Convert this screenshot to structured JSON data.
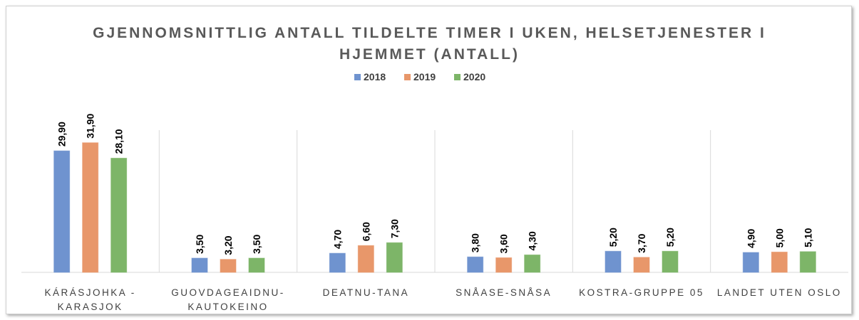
{
  "chart_data": {
    "type": "bar",
    "title": "GJENNOMSNITTLIG ANTALL TILDELTE TIMER I UKEN, HELSETJENESTER I HJEMMET (ANTALL)",
    "categories": [
      "KÁRÁSJOHKA - KARASJOK",
      "GUOVDAGEAIDNU-KAUTOKEINO",
      "DEATNU-TANA",
      "SNÅASE-SNÅSA",
      "KOSTRA-GRUPPE 05",
      "LANDET UTEN OSLO"
    ],
    "series": [
      {
        "name": "2018",
        "color": "#6f93cf",
        "values": [
          29.9,
          3.5,
          4.7,
          3.8,
          5.2,
          4.9
        ],
        "value_labels": [
          "29,90",
          "3,50",
          "4,70",
          "3,80",
          "5,20",
          "4,90"
        ]
      },
      {
        "name": "2019",
        "color": "#e8976a",
        "values": [
          31.9,
          3.2,
          6.6,
          3.6,
          3.7,
          5.0
        ],
        "value_labels": [
          "31,90",
          "3,20",
          "6,60",
          "3,60",
          "3,70",
          "5,00"
        ]
      },
      {
        "name": "2020",
        "color": "#7db568",
        "values": [
          28.1,
          3.5,
          7.3,
          4.3,
          5.2,
          5.1
        ],
        "value_labels": [
          "28,10",
          "3,50",
          "7,30",
          "4,30",
          "5,20",
          "5,10"
        ]
      }
    ],
    "ylim": [
      0,
      35
    ],
    "legend": "top"
  }
}
